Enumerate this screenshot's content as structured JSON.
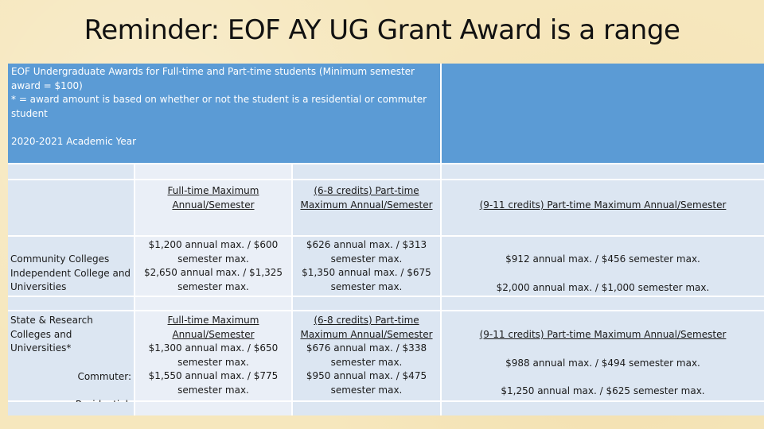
{
  "title": "Reminder: EOF AY UG Grant Award is a range",
  "header": {
    "note_line1": "EOF Undergraduate Awards for Full-time and Part-time students (Minimum semester award = $100)",
    "note_line2": "* = award amount is based on whether or not the student is a residential or commuter student",
    "academic_year": "2020-2021 Academic Year"
  },
  "columns": {
    "fulltime": "Full-time Maximum Annual/Semester",
    "pt_6_8": "(6-8 credits) Part-time Maximum Annual/Semester",
    "pt_9_11": "(9-11 credits) Part-time Maximum Annual/Semester"
  },
  "community": {
    "label": "Community Colleges Independent College and Universities",
    "ft_cc": "$1,200 annual max. / $600 semester max.",
    "ft_ind": "$2,650 annual max. / $1,325 semester max.",
    "pt68_cc": "$626 annual max. / $313 semester max.",
    "pt68_ind": "$1,350 annual max. / $675 semester max.",
    "pt911_cc": "$912 annual max. / $456 semester max.",
    "pt911_ind": "$2,000 annual max. / $1,000 semester max."
  },
  "state": {
    "label": "State & Research Colleges and Universities*",
    "commuter_label": "Commuter:",
    "residential_label": "Residential:",
    "ft_header": "Full-time Maximum Annual/Semester",
    "pt68_header": "(6-8 credits) Part-time Maximum Annual/Semester",
    "pt911_header": "(9-11 credits) Part-time Maximum Annual/Semester",
    "ft_commuter": "$1,300 annual max. / $650 semester max.",
    "ft_residential": "$1,550 annual max. / $775 semester max.",
    "pt68_commuter": "$676 annual max. / $338 semester max.",
    "pt68_residential": "$950 annual max. / $475 semester max.",
    "pt911_commuter": "$988 annual max. / $494 semester max.",
    "pt911_residential": "$1,250 annual max. / $625 semester max."
  }
}
